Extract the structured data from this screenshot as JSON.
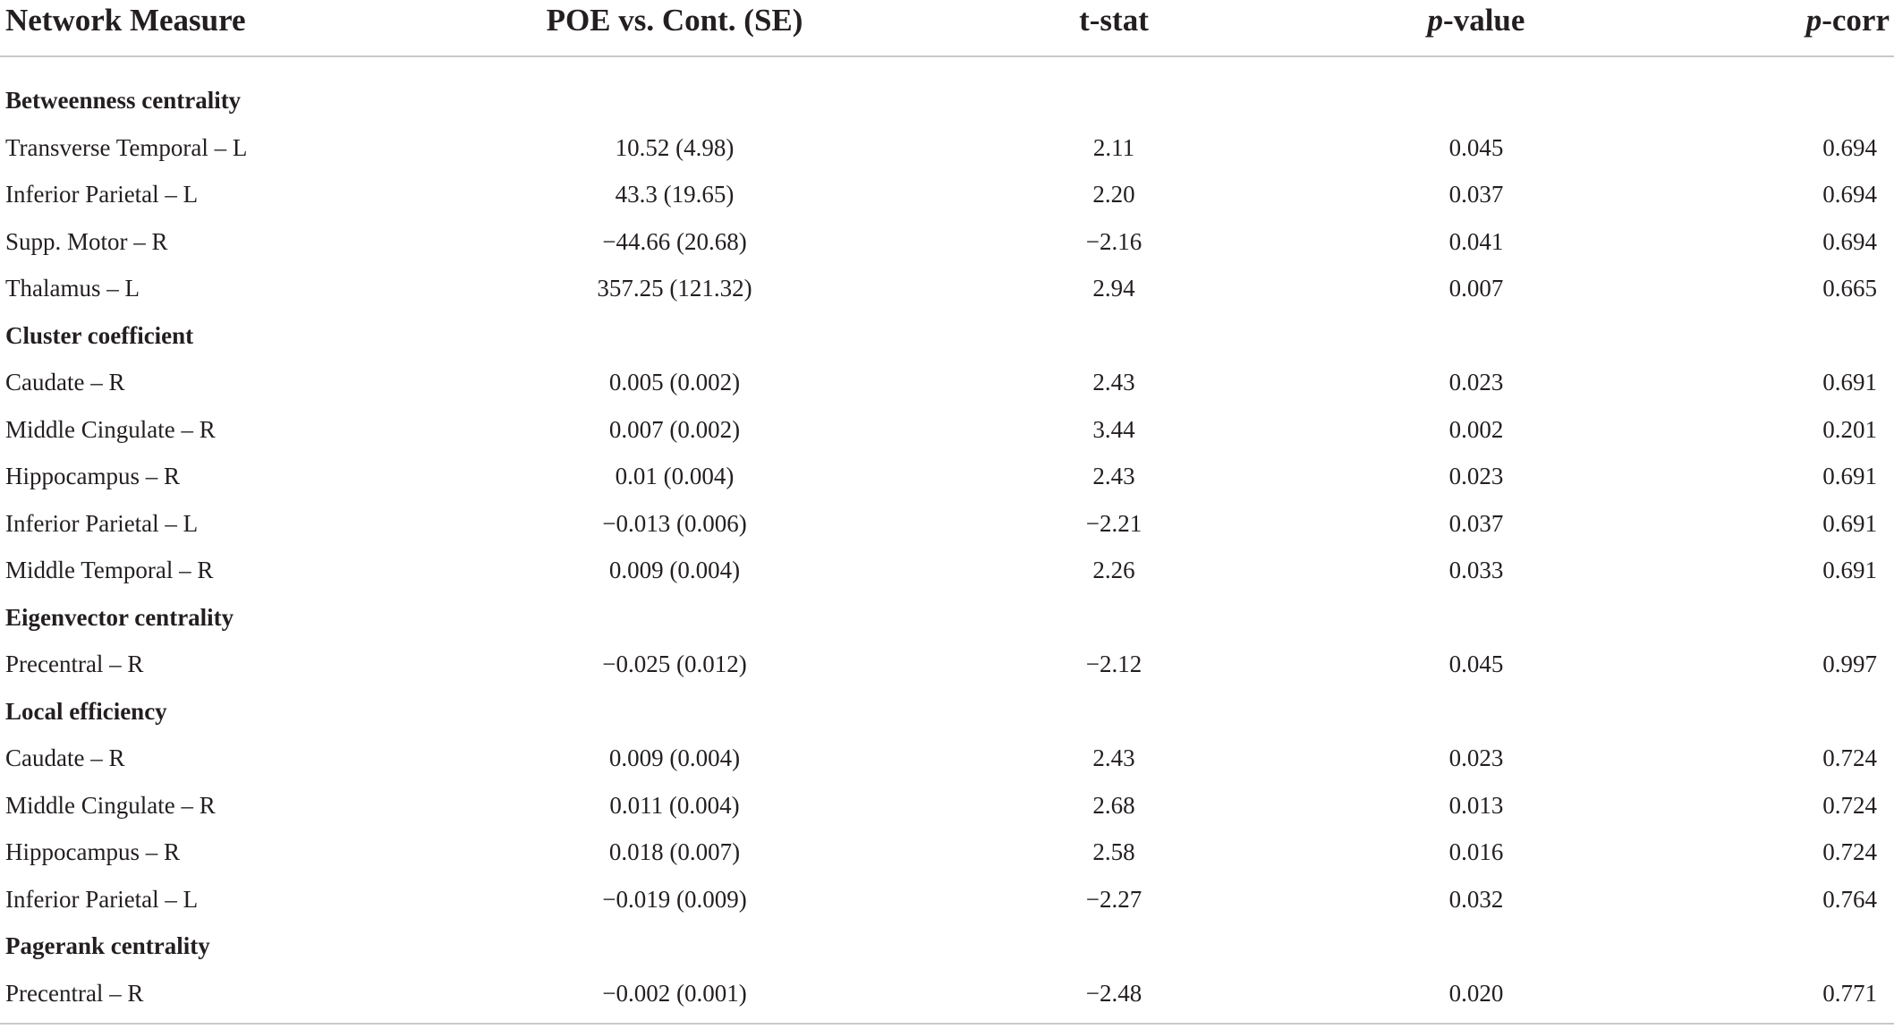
{
  "header": {
    "col_measure": "Network Measure",
    "col_poe": "POE vs. Cont. (SE)",
    "col_tstat": "t-stat",
    "col_p_italic": "p",
    "col_p_rest": "-value",
    "col_pcorr_italic": "p",
    "col_pcorr_rest": "-corr"
  },
  "rows": [
    {
      "type": "section",
      "label": "Betweenness centrality"
    },
    {
      "type": "data",
      "label": "Transverse Temporal – L",
      "poe": "10.52 (4.98)",
      "t": "2.11",
      "p": "0.045",
      "pcorr": "0.694"
    },
    {
      "type": "data",
      "label": "Inferior Parietal – L",
      "poe": "43.3 (19.65)",
      "t": "2.20",
      "p": "0.037",
      "pcorr": "0.694"
    },
    {
      "type": "data",
      "label": "Supp. Motor – R",
      "poe": "−44.66 (20.68)",
      "t": "−2.16",
      "p": "0.041",
      "pcorr": "0.694"
    },
    {
      "type": "data",
      "label": "Thalamus – L",
      "poe": "357.25 (121.32)",
      "t": "2.94",
      "p": "0.007",
      "pcorr": "0.665"
    },
    {
      "type": "section",
      "label": "Cluster coefficient"
    },
    {
      "type": "data",
      "label": "Caudate – R",
      "poe": "0.005 (0.002)",
      "t": "2.43",
      "p": "0.023",
      "pcorr": "0.691"
    },
    {
      "type": "data",
      "label": "Middle Cingulate – R",
      "poe": "0.007 (0.002)",
      "t": "3.44",
      "p": "0.002",
      "pcorr": "0.201"
    },
    {
      "type": "data",
      "label": "Hippocampus – R",
      "poe": "0.01 (0.004)",
      "t": "2.43",
      "p": "0.023",
      "pcorr": "0.691"
    },
    {
      "type": "data",
      "label": "Inferior Parietal – L",
      "poe": "−0.013 (0.006)",
      "t": "−2.21",
      "p": "0.037",
      "pcorr": "0.691"
    },
    {
      "type": "data",
      "label": "Middle Temporal – R",
      "poe": "0.009 (0.004)",
      "t": "2.26",
      "p": "0.033",
      "pcorr": "0.691"
    },
    {
      "type": "section",
      "label": "Eigenvector centrality"
    },
    {
      "type": "data",
      "label": "Precentral – R",
      "poe": "−0.025 (0.012)",
      "t": "−2.12",
      "p": "0.045",
      "pcorr": "0.997"
    },
    {
      "type": "section",
      "label": "Local efficiency"
    },
    {
      "type": "data",
      "label": "Caudate – R",
      "poe": "0.009 (0.004)",
      "t": "2.43",
      "p": "0.023",
      "pcorr": "0.724"
    },
    {
      "type": "data",
      "label": "Middle Cingulate – R",
      "poe": "0.011 (0.004)",
      "t": "2.68",
      "p": "0.013",
      "pcorr": "0.724"
    },
    {
      "type": "data",
      "label": "Hippocampus – R",
      "poe": "0.018 (0.007)",
      "t": "2.58",
      "p": "0.016",
      "pcorr": "0.724"
    },
    {
      "type": "data",
      "label": "Inferior Parietal – L",
      "poe": "−0.019 (0.009)",
      "t": "−2.27",
      "p": "0.032",
      "pcorr": "0.764"
    },
    {
      "type": "section",
      "label": "Pagerank centrality"
    },
    {
      "type": "data",
      "label": "Precentral – R",
      "poe": "−0.002 (0.001)",
      "t": "−2.48",
      "p": "0.020",
      "pcorr": "0.771"
    }
  ]
}
